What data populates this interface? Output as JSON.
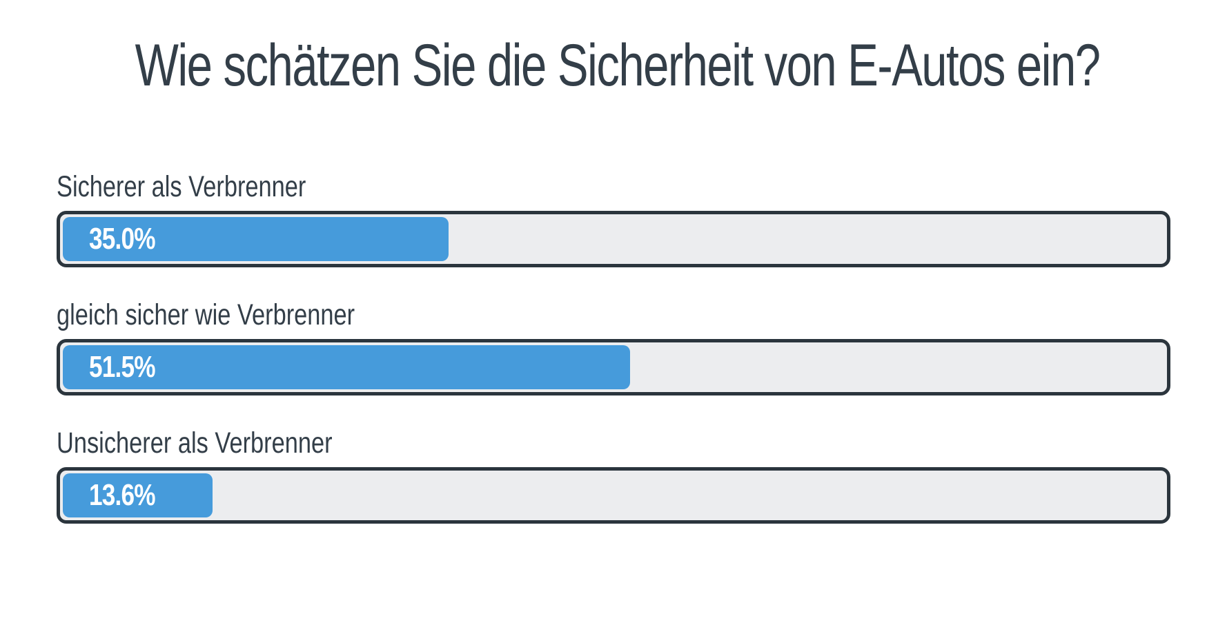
{
  "chart_data": {
    "type": "bar",
    "orientation": "horizontal",
    "title": "Wie schätzen Sie die Sicherheit von E-Autos ein?",
    "categories": [
      "Sicherer als Verbrenner",
      "gleich sicher wie Verbrenner",
      "Unsicherer als Verbrenner"
    ],
    "values": [
      35.0,
      51.5,
      13.6
    ],
    "value_labels": [
      "35.0%",
      "51.5%",
      "13.6%"
    ],
    "xlim": [
      0,
      100
    ],
    "grid": false,
    "legend": "none",
    "colors": {
      "fill": "#469bdb",
      "track": "#ecedef",
      "border": "#2b353d",
      "text": "#333e48"
    }
  }
}
